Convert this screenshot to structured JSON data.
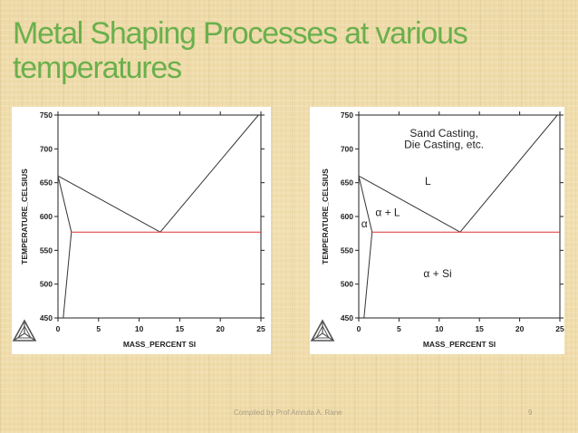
{
  "slide": {
    "title": "Metal Shaping Processes at various temperatures",
    "footer": "Compiled by Prof Amruta A. Rane",
    "page_number": "9",
    "title_color": "#6ab04c"
  },
  "chart_data": [
    {
      "type": "line",
      "title": "",
      "xlabel": "MASS_PERCENT SI",
      "ylabel": "TEMPERATURE_CELSIUS",
      "xlim": [
        0,
        25
      ],
      "ylim": [
        450,
        750
      ],
      "x_ticks": [
        "0",
        "5",
        "10",
        "15",
        "20",
        "25"
      ],
      "y_ticks": [
        "450",
        "500",
        "550",
        "600",
        "650",
        "700",
        "750"
      ],
      "grid": false,
      "series": [
        {
          "name": "liquidus (Al side)",
          "color": "#333333",
          "x": [
            0,
            12.6
          ],
          "y": [
            660,
            577
          ]
        },
        {
          "name": "liquidus (Si side)",
          "color": "#333333",
          "x": [
            12.6,
            24.7
          ],
          "y": [
            577,
            750
          ]
        },
        {
          "name": "solidus",
          "color": "#333333",
          "x": [
            0,
            1.65
          ],
          "y": [
            660,
            577
          ]
        },
        {
          "name": "solvus",
          "color": "#333333",
          "x": [
            1.65,
            0.65
          ],
          "y": [
            577,
            450
          ]
        },
        {
          "name": "eutectic isotherm",
          "color": "#e03030",
          "x": [
            1.65,
            25
          ],
          "y": [
            577,
            577
          ]
        }
      ],
      "annotations": []
    },
    {
      "type": "line",
      "title": "",
      "xlabel": "MASS_PERCENT SI",
      "ylabel": "TEMPERATURE_CELSIUS",
      "xlim": [
        0,
        25
      ],
      "ylim": [
        450,
        750
      ],
      "x_ticks": [
        "0",
        "5",
        "10",
        "15",
        "20",
        "25"
      ],
      "y_ticks": [
        "450",
        "500",
        "550",
        "600",
        "650",
        "700",
        "750"
      ],
      "grid": false,
      "series": [
        {
          "name": "liquidus (Al side)",
          "color": "#333333",
          "x": [
            0,
            12.6
          ],
          "y": [
            660,
            577
          ]
        },
        {
          "name": "liquidus (Si side)",
          "color": "#333333",
          "x": [
            12.6,
            24.7
          ],
          "y": [
            577,
            750
          ]
        },
        {
          "name": "solidus",
          "color": "#333333",
          "x": [
            0,
            1.65
          ],
          "y": [
            660,
            577
          ]
        },
        {
          "name": "solvus",
          "color": "#333333",
          "x": [
            1.65,
            0.65
          ],
          "y": [
            577,
            450
          ]
        },
        {
          "name": "eutectic isotherm",
          "color": "#e03030",
          "x": [
            1.65,
            25
          ],
          "y": [
            577,
            577
          ]
        }
      ],
      "annotations": [
        {
          "text": "Sand Casting,",
          "x": 10.6,
          "y": 718
        },
        {
          "text": "Die Casting, etc.",
          "x": 10.6,
          "y": 701
        },
        {
          "text": "L",
          "x": 8.6,
          "y": 647
        },
        {
          "text": "α + L",
          "x": 3.6,
          "y": 601
        },
        {
          "text": "α",
          "x": 0.7,
          "y": 584
        },
        {
          "text": "α + Si",
          "x": 9.8,
          "y": 510
        }
      ]
    }
  ]
}
